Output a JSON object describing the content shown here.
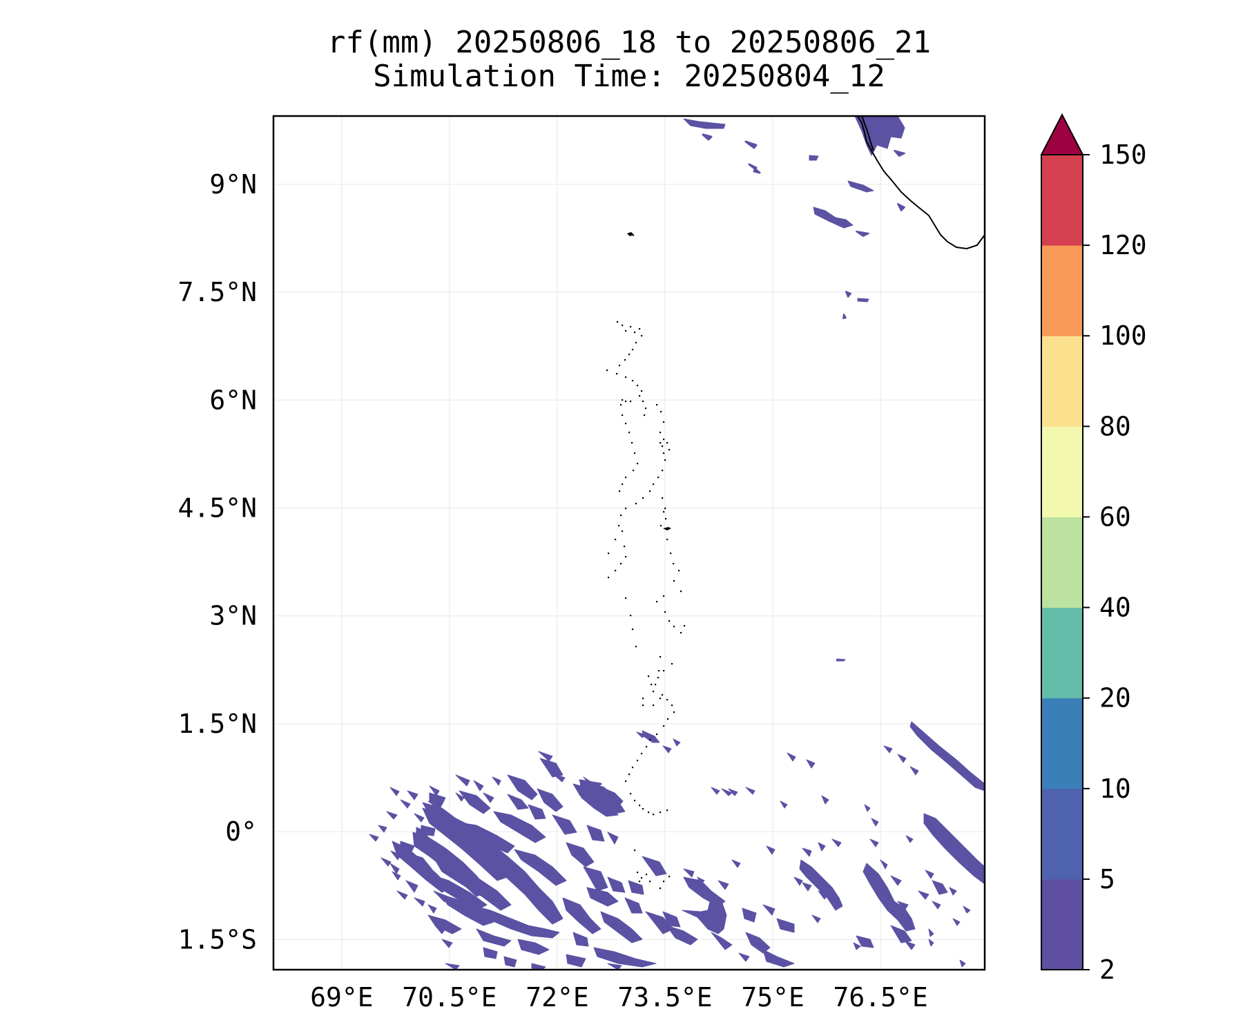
{
  "title": {
    "line1": "rf(mm) 20250806_18 to 20250806_21",
    "line2": "Simulation Time: 20250804_12"
  },
  "map": {
    "lon_range": [
      68.05,
      77.95
    ],
    "lat_range": [
      -1.92,
      9.95
    ],
    "lon_ticks": [
      {
        "value": 69,
        "label": "69°E"
      },
      {
        "value": 70.5,
        "label": "70.5°E"
      },
      {
        "value": 72,
        "label": "72°E"
      },
      {
        "value": 73.5,
        "label": "73.5°E"
      },
      {
        "value": 75,
        "label": "75°E"
      },
      {
        "value": 76.5,
        "label": "76.5°E"
      }
    ],
    "lat_ticks": [
      {
        "value": 9,
        "label": "9°N"
      },
      {
        "value": 7.5,
        "label": "7.5°N"
      },
      {
        "value": 6,
        "label": "6°N"
      },
      {
        "value": 4.5,
        "label": "4.5°N"
      },
      {
        "value": 3,
        "label": "3°N"
      },
      {
        "value": 1.5,
        "label": "1.5°N"
      },
      {
        "value": 0,
        "label": "0°"
      },
      {
        "value": -1.5,
        "label": "1.5°S"
      }
    ],
    "gridlines": true,
    "rain_color": "#5b52a3",
    "rain_color_dark": "#4f62ad",
    "coast_color": "#000000",
    "gridline_color": "#e6e6e6"
  },
  "colorbar": {
    "levels": [
      "2",
      "5",
      "10",
      "20",
      "40",
      "60",
      "80",
      "100",
      "120",
      "150"
    ],
    "colors": [
      "#5e4fa2",
      "#4f62ad",
      "#3a7fb8",
      "#63bda9",
      "#bbe29f",
      "#f2f9ae",
      "#fbe08e",
      "#f89b58",
      "#d4404f"
    ],
    "extend_color": "#9e0142"
  }
}
